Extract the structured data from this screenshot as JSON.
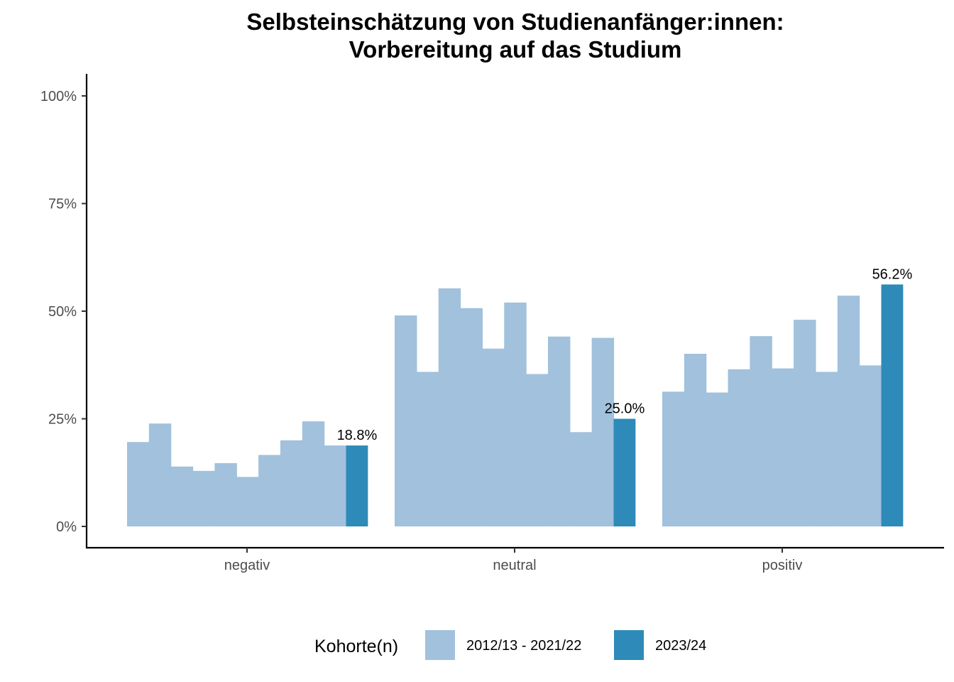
{
  "title_line1": "Selbsteinschätzung von Studienanfänger:innen:",
  "title_line2": "Vorbereitung auf das Studium",
  "legend": {
    "title": "Kohorte(n)",
    "items": [
      {
        "label": "2012/13 - 2021/22",
        "color": "#a1c1dc"
      },
      {
        "label": "2023/24",
        "color": "#2e8ab8"
      }
    ]
  },
  "chart_data": {
    "type": "bar",
    "categories": [
      "negativ",
      "neutral",
      "positiv"
    ],
    "series": [
      {
        "name": "2012/13 - 2021/22",
        "color": "#a1c1dc",
        "values": [
          [
            19.6,
            23.9,
            13.9,
            12.9,
            14.7,
            11.5,
            16.6,
            20.0,
            24.4,
            18.8
          ],
          [
            49.0,
            35.9,
            55.3,
            50.7,
            41.3,
            52.0,
            35.4,
            44.1,
            21.9,
            43.8
          ],
          [
            31.3,
            40.1,
            31.1,
            36.5,
            44.2,
            36.7,
            48.0,
            35.9,
            53.6,
            37.4
          ]
        ]
      },
      {
        "name": "2023/24",
        "color": "#2e8ab8",
        "values": [
          18.8,
          25.0,
          56.2
        ],
        "labels": [
          "18.8%",
          "25.0%",
          "56.2%"
        ]
      }
    ],
    "yticks": [
      "0%",
      "25%",
      "50%",
      "75%",
      "100%"
    ],
    "ylim": [
      0,
      100
    ],
    "legend_position": "bottom",
    "grid": false
  }
}
